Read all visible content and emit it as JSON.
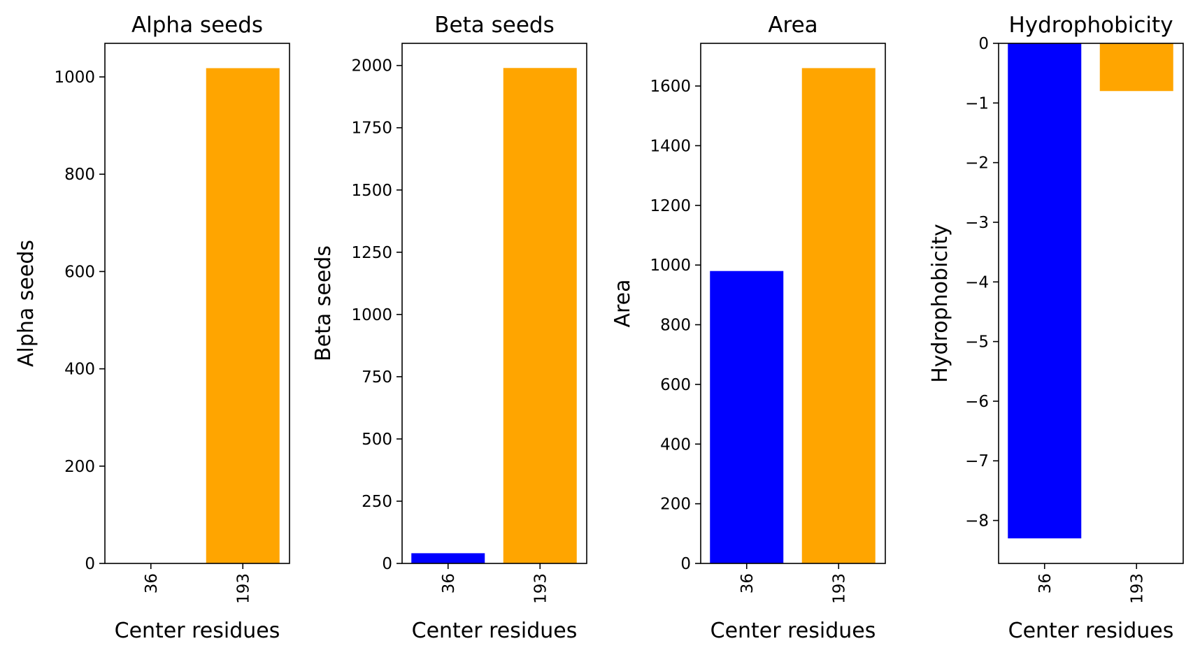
{
  "chart_data": [
    {
      "type": "bar",
      "title": "Alpha seeds",
      "xlabel": "Center residues",
      "ylabel": "Alpha seeds",
      "categories": [
        "36",
        "193"
      ],
      "values": [
        0,
        1018
      ],
      "colors": [
        "#0000ff",
        "#ffa500"
      ],
      "ylim": [
        0,
        1069
      ],
      "yticks": [
        0,
        200,
        400,
        600,
        800,
        1000
      ],
      "ytick_labels": [
        "0",
        "200",
        "400",
        "600",
        "800",
        "1000"
      ],
      "grid": false
    },
    {
      "type": "bar",
      "title": "Beta seeds",
      "xlabel": "Center residues",
      "ylabel": "Beta seeds",
      "categories": [
        "36",
        "193"
      ],
      "values": [
        41,
        1990
      ],
      "colors": [
        "#0000ff",
        "#ffa500"
      ],
      "ylim": [
        0,
        2089
      ],
      "yticks": [
        0,
        250,
        500,
        750,
        1000,
        1250,
        1500,
        1750,
        2000
      ],
      "ytick_labels": [
        "0",
        "250",
        "500",
        "750",
        "1000",
        "1250",
        "1500",
        "1750",
        "2000"
      ],
      "grid": false
    },
    {
      "type": "bar",
      "title": "Area",
      "xlabel": "Center residues",
      "ylabel": "Area",
      "categories": [
        "36",
        "193"
      ],
      "values": [
        980,
        1660
      ],
      "colors": [
        "#0000ff",
        "#ffa500"
      ],
      "ylim": [
        0,
        1743
      ],
      "yticks": [
        0,
        200,
        400,
        600,
        800,
        1000,
        1200,
        1400,
        1600
      ],
      "ytick_labels": [
        "0",
        "200",
        "400",
        "600",
        "800",
        "1000",
        "1200",
        "1400",
        "1600"
      ],
      "grid": false
    },
    {
      "type": "bar",
      "title": "Hydrophobicity",
      "xlabel": "Center residues",
      "ylabel": "Hydrophobicity",
      "categories": [
        "36",
        "193"
      ],
      "values": [
        -8.3,
        -0.8
      ],
      "colors": [
        "#0000ff",
        "#ffa500"
      ],
      "ylim": [
        -8.72,
        0
      ],
      "yticks": [
        0,
        -1,
        -2,
        -3,
        -4,
        -5,
        -6,
        -7,
        -8
      ],
      "ytick_labels": [
        "0",
        "−1",
        "−2",
        "−3",
        "−4",
        "−5",
        "−6",
        "−7",
        "−8"
      ],
      "grid": false
    }
  ]
}
